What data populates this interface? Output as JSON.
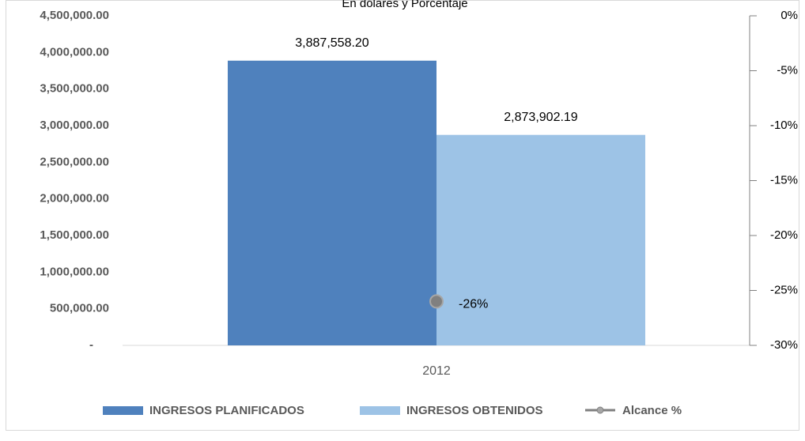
{
  "chart_data": {
    "type": "bar",
    "title": "",
    "subtitle": "En dólares y Porcentaje",
    "categories": [
      "2012"
    ],
    "series": [
      {
        "name": "INGRESOS PLANIFICADOS",
        "type": "bar",
        "axis": "left",
        "values": [
          3887558.2
        ],
        "labels": [
          "3,887,558.20"
        ],
        "color": "#4F81BD"
      },
      {
        "name": "INGRESOS OBTENIDOS",
        "type": "bar",
        "axis": "left",
        "values": [
          2873902.19
        ],
        "labels": [
          "2,873,902.19"
        ],
        "color": "#9DC3E6"
      },
      {
        "name": "Alcance %",
        "type": "line",
        "axis": "right",
        "values": [
          -26
        ],
        "labels": [
          "-26%"
        ],
        "color": "#7F7F7F"
      }
    ],
    "y_left": {
      "ylim": [
        0,
        4500000
      ],
      "ticks": [
        "-",
        "500,000.00",
        "1,000,000.00",
        "1,500,000.00",
        "2,000,000.00",
        "2,500,000.00",
        "3,000,000.00",
        "3,500,000.00",
        "4,000,000.00",
        "4,500,000.00"
      ]
    },
    "y_right": {
      "ylim": [
        -30,
        0
      ],
      "ticks": [
        "-30%",
        "-25%",
        "-20%",
        "-15%",
        "-10%",
        "-5%",
        "0%"
      ]
    },
    "grid": false,
    "legend_position": "bottom"
  }
}
